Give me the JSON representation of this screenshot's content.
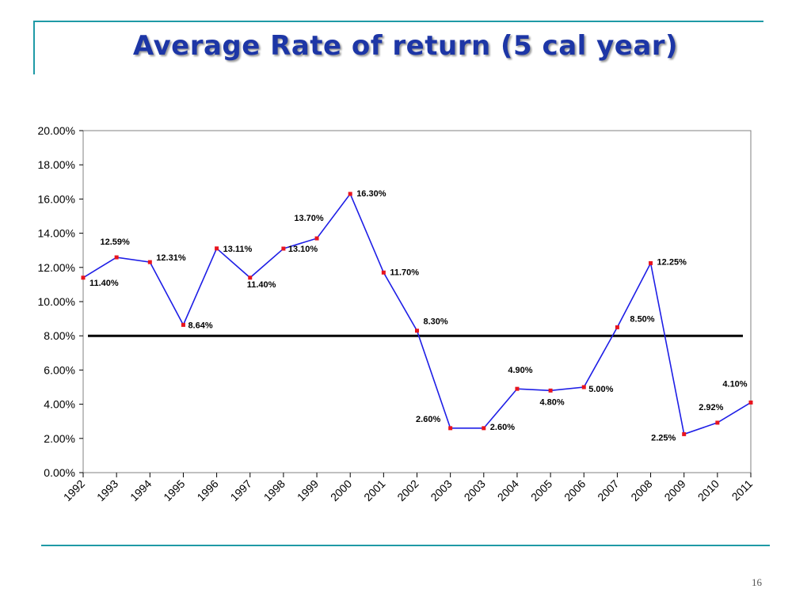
{
  "slide": {
    "title": "Average Rate of return (5 cal year)",
    "page_number": "16"
  },
  "chart_data": {
    "type": "line",
    "title": "",
    "xlabel": "",
    "ylabel": "",
    "categories": [
      "1992",
      "1993",
      "1994",
      "1995",
      "1996",
      "1997",
      "1998",
      "1999",
      "2000",
      "2001",
      "2002",
      "2003",
      "2003",
      "2004",
      "2005",
      "2006",
      "2007",
      "2008",
      "2009",
      "2010",
      "2011"
    ],
    "series": [
      {
        "values": [
          11.4,
          12.59,
          12.31,
          8.64,
          13.11,
          11.4,
          13.1,
          13.7,
          16.3,
          11.7,
          8.3,
          2.6,
          2.6,
          4.9,
          4.8,
          5.0,
          8.5,
          12.25,
          2.25,
          2.92,
          4.1
        ],
        "labels": [
          "11.40%",
          "12.59%",
          "12.31%",
          "8.64%",
          "13.11%",
          "11.40%",
          "13.10%",
          "13.70%",
          "16.30%",
          "11.70%",
          "8.30%",
          "2.60%",
          "2.60%",
          "4.90%",
          "4.80%",
          "5.00%",
          "8.50%",
          "12.25%",
          "2.25%",
          "2.92%",
          "4.10%"
        ],
        "line_color": "#1e1ee6",
        "marker_color": "#e8141e"
      }
    ],
    "reference_line": {
      "value": 8.0,
      "color": "#000000"
    },
    "ylim": [
      0,
      20
    ],
    "yticks": [
      "0.00%",
      "2.00%",
      "4.00%",
      "6.00%",
      "8.00%",
      "10.00%",
      "12.00%",
      "14.00%",
      "16.00%",
      "18.00%",
      "20.00%"
    ],
    "grid": false,
    "legend": "none"
  }
}
